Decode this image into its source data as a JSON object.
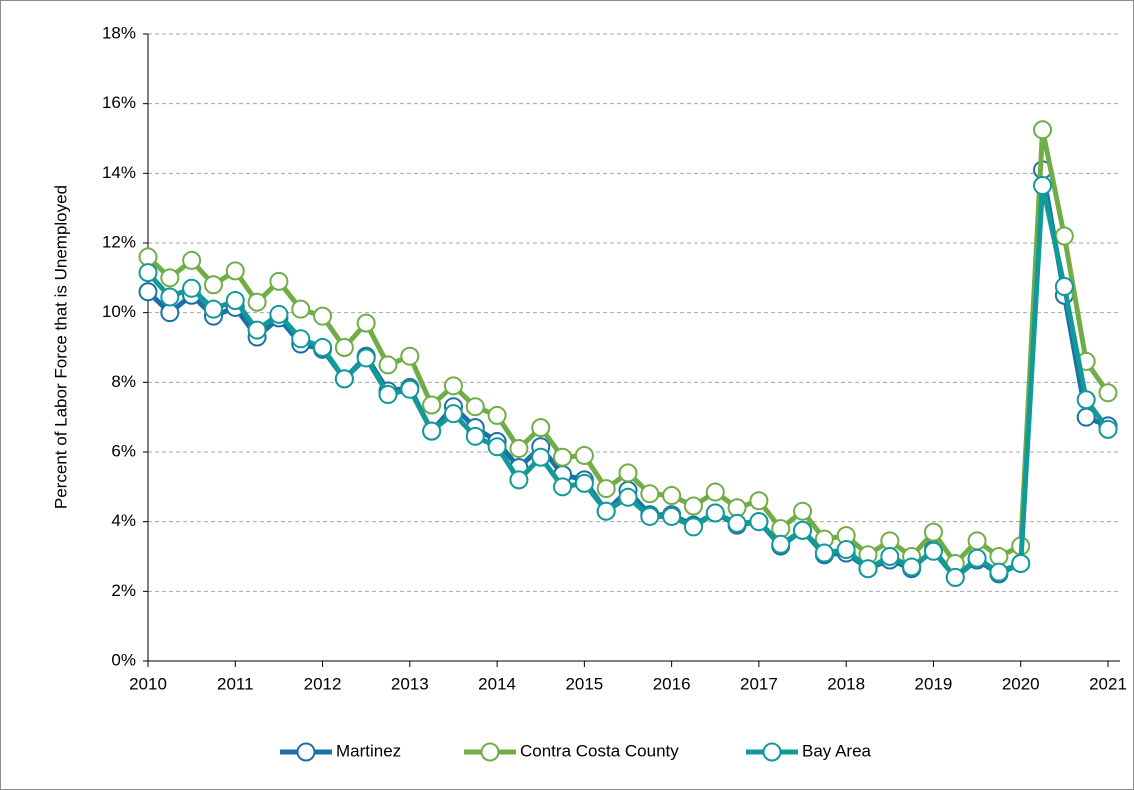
{
  "chart_data": {
    "type": "line",
    "y_label": "Percent of Labor Force that is Unemployed",
    "x": [
      2010,
      2010.25,
      2010.5,
      2010.75,
      2011,
      2011.25,
      2011.5,
      2011.75,
      2012,
      2012.25,
      2012.5,
      2012.75,
      2013,
      2013.25,
      2013.5,
      2013.75,
      2014,
      2014.25,
      2014.5,
      2014.75,
      2015,
      2015.25,
      2015.5,
      2015.75,
      2016,
      2016.25,
      2016.5,
      2016.75,
      2017,
      2017.25,
      2017.5,
      2017.75,
      2018,
      2018.25,
      2018.5,
      2018.75,
      2019,
      2019.25,
      2019.5,
      2019.75,
      2020,
      2020.25,
      2020.5,
      2020.75,
      2021
    ],
    "series": [
      {
        "name": "Martinez",
        "color": "#1b70a6",
        "values": [
          10.6,
          10.0,
          10.5,
          9.9,
          10.15,
          9.3,
          9.85,
          9.1,
          8.95,
          8.1,
          8.75,
          7.75,
          7.85,
          6.6,
          7.3,
          6.7,
          6.3,
          5.55,
          6.15,
          5.35,
          5.2,
          4.3,
          4.9,
          4.2,
          4.2,
          3.9,
          4.25,
          3.9,
          4.0,
          3.3,
          3.75,
          3.05,
          3.1,
          2.65,
          2.9,
          2.65,
          3.2,
          2.4,
          2.9,
          2.5,
          2.8,
          14.1,
          10.5,
          7.0,
          6.75
        ]
      },
      {
        "name": "Contra Costa County",
        "color": "#70ad47",
        "values": [
          11.6,
          11.0,
          11.5,
          10.8,
          11.2,
          10.3,
          10.9,
          10.1,
          9.9,
          9.0,
          9.7,
          8.5,
          8.75,
          7.35,
          7.9,
          7.3,
          7.05,
          6.1,
          6.7,
          5.85,
          5.9,
          4.95,
          5.4,
          4.8,
          4.75,
          4.45,
          4.85,
          4.4,
          4.6,
          3.8,
          4.3,
          3.5,
          3.6,
          3.05,
          3.45,
          3.0,
          3.7,
          2.8,
          3.45,
          3.0,
          3.3,
          15.25,
          12.2,
          8.6,
          7.7
        ]
      },
      {
        "name": "Bay Area",
        "color": "#12999a",
        "values": [
          11.15,
          10.45,
          10.7,
          10.1,
          10.35,
          9.5,
          9.95,
          9.25,
          9.0,
          8.1,
          8.7,
          7.65,
          7.8,
          6.6,
          7.1,
          6.45,
          6.15,
          5.2,
          5.85,
          5.0,
          5.1,
          4.3,
          4.7,
          4.15,
          4.15,
          3.85,
          4.25,
          3.95,
          4.0,
          3.35,
          3.75,
          3.1,
          3.2,
          2.65,
          3.0,
          2.7,
          3.15,
          2.4,
          2.95,
          2.55,
          2.8,
          13.65,
          10.75,
          7.5,
          6.65
        ]
      }
    ],
    "xlim": [
      2010,
      2021
    ],
    "xticks": [
      2010,
      2011,
      2012,
      2013,
      2014,
      2015,
      2016,
      2017,
      2018,
      2019,
      2020,
      2021
    ],
    "ylim": [
      0,
      18
    ],
    "yticks": [
      {
        "value": 0,
        "label": "0%"
      },
      {
        "value": 2,
        "label": "2%"
      },
      {
        "value": 4,
        "label": "4%"
      },
      {
        "value": 6,
        "label": "6%"
      },
      {
        "value": 8,
        "label": "8%"
      },
      {
        "value": 10,
        "label": "10%"
      },
      {
        "value": 12,
        "label": "12%"
      },
      {
        "value": 14,
        "label": "14%"
      },
      {
        "value": 16,
        "label": "16%"
      },
      {
        "value": 18,
        "label": "18%"
      }
    ],
    "grid": true,
    "legend": "bottom"
  }
}
